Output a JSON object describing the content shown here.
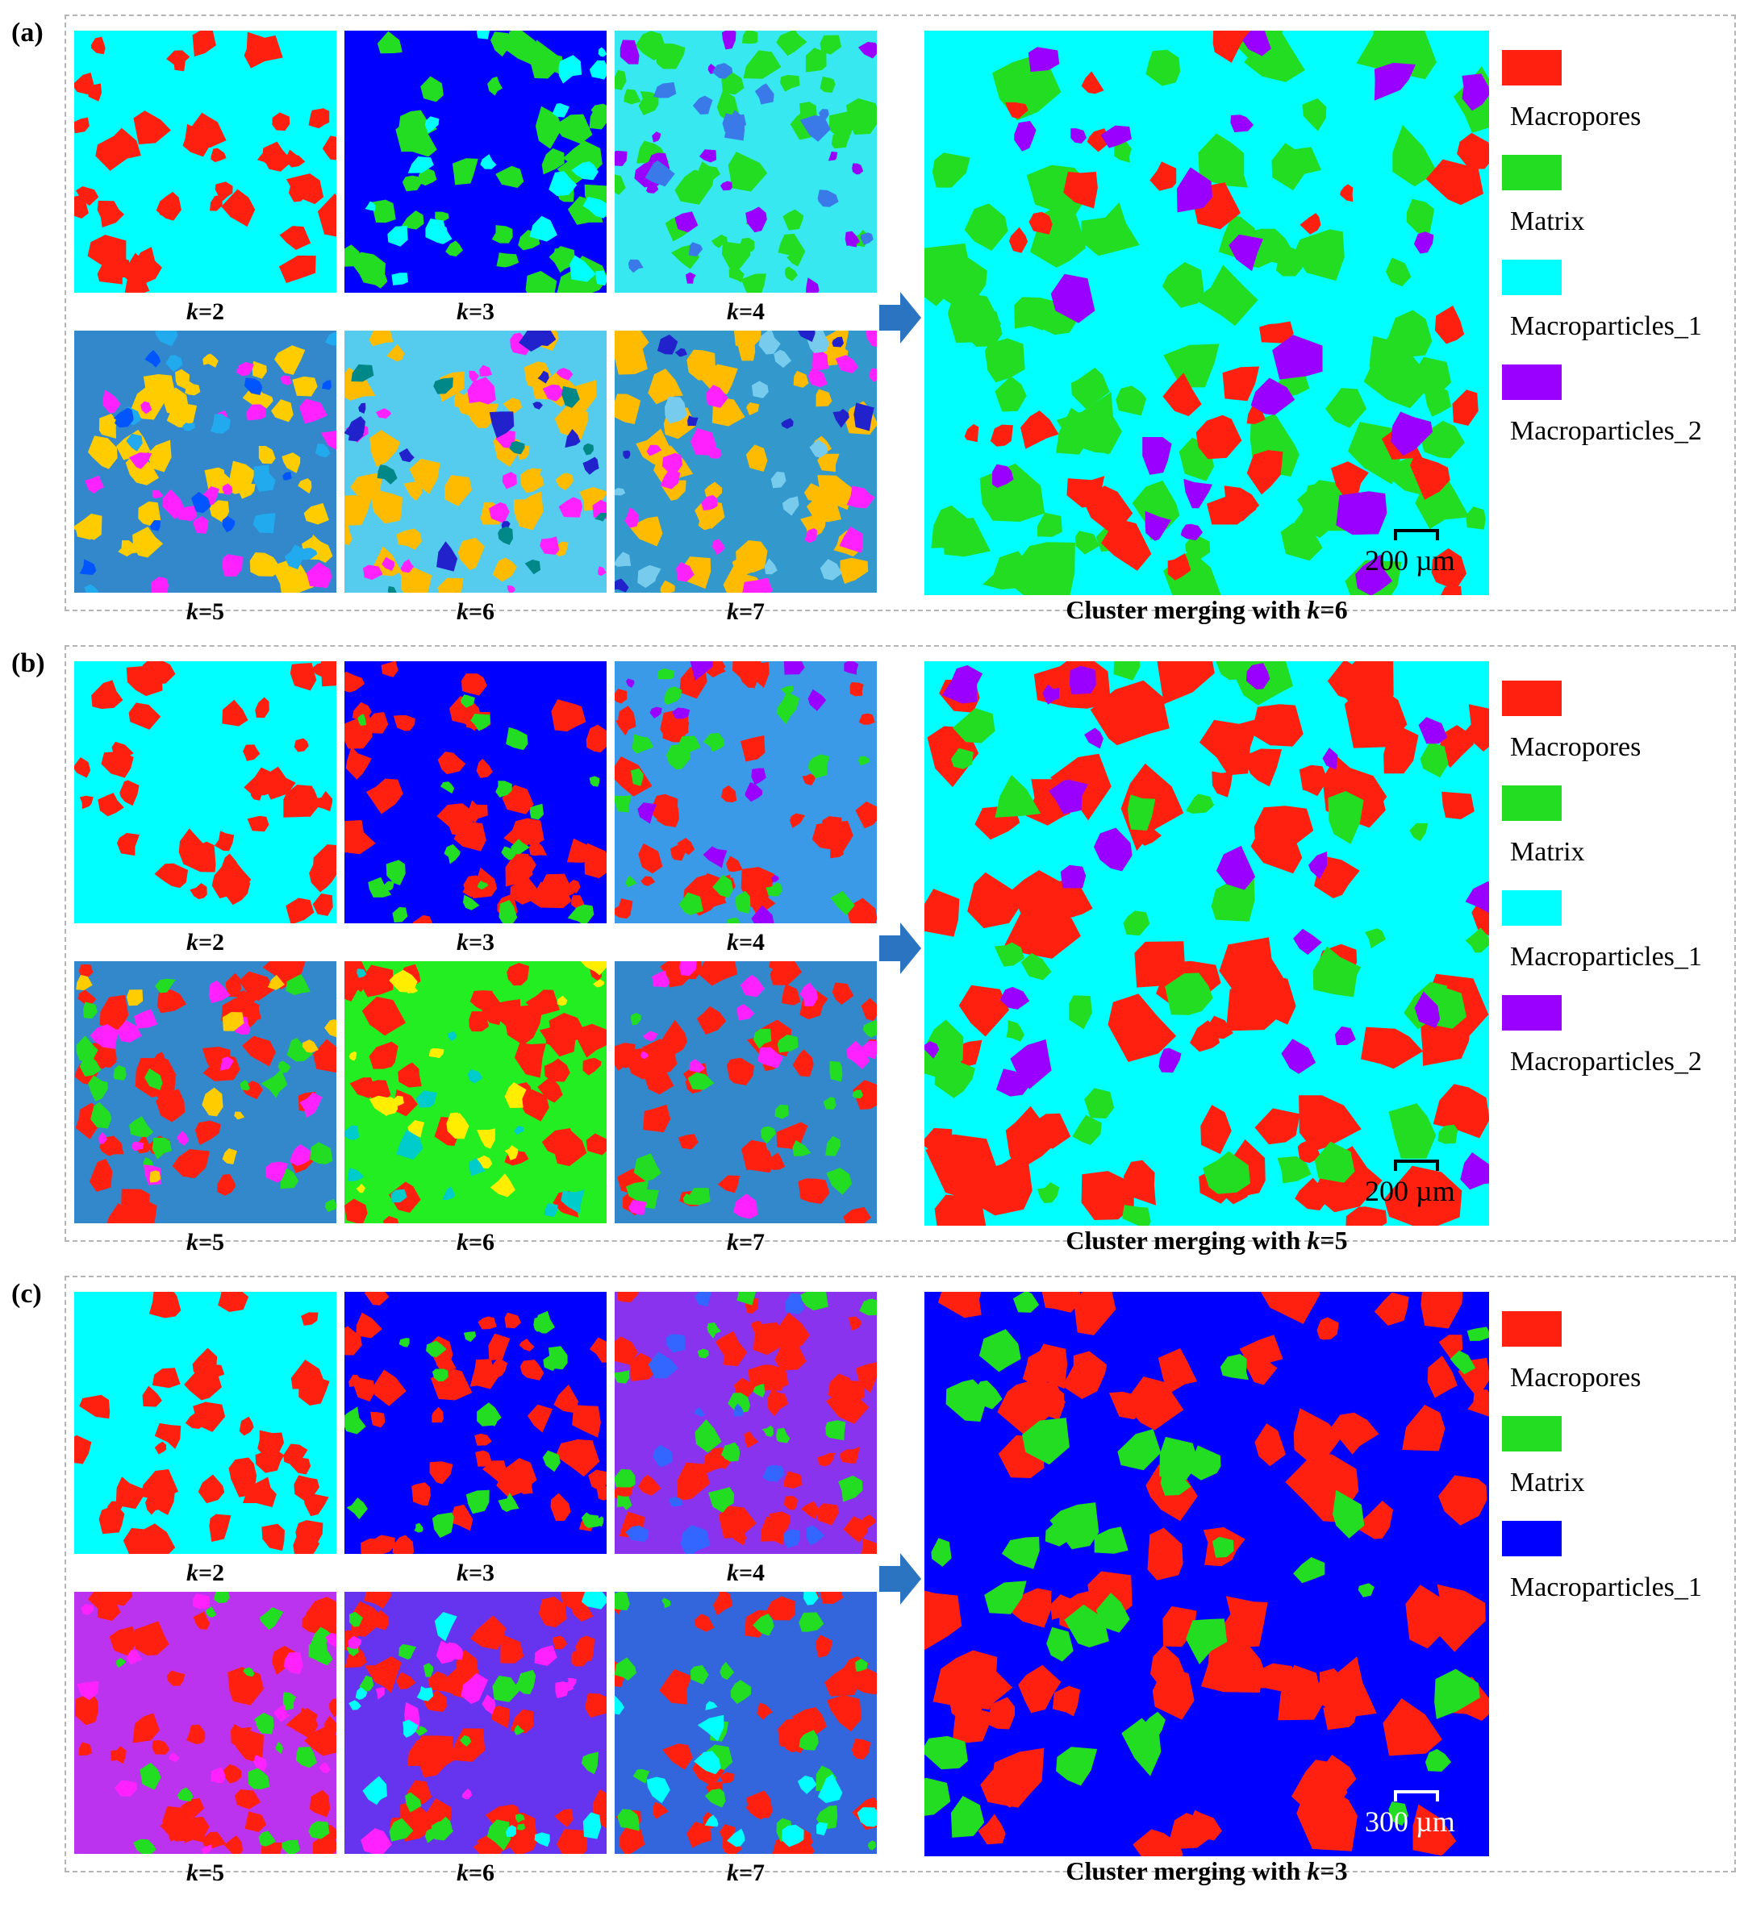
{
  "panels": [
    {
      "label": "(a)",
      "tiles": [
        {
          "k": "2",
          "bg": "#00ffff",
          "c": [
            "#ff2010"
          ]
        },
        {
          "k": "3",
          "bg": "#0000ff",
          "c": [
            "#22dd22",
            "#00ffff"
          ]
        },
        {
          "k": "4",
          "bg": "#38e8f0",
          "c": [
            "#22dd22",
            "#9a00ff",
            "#3a7ae8"
          ]
        },
        {
          "k": "5",
          "bg": "#3388cc",
          "c": [
            "#ffcc00",
            "#ff22ff",
            "#22aaee",
            "#0055ff"
          ]
        },
        {
          "k": "6",
          "bg": "#55ccee",
          "c": [
            "#ffbb00",
            "#ff22ff",
            "#2222cc",
            "#008888"
          ]
        },
        {
          "k": "7",
          "bg": "#3399cc",
          "c": [
            "#ffbb00",
            "#ff22ff",
            "#77ccee",
            "#2222cc"
          ]
        }
      ],
      "big": {
        "bg": "#00ffff",
        "c": [
          "#22dd22",
          "#ff2010",
          "#9a00ff"
        ]
      },
      "caption_prefix": "Cluster merging with ",
      "caption_k": "6",
      "scale": "200 µm",
      "scale_color": "dark",
      "legend": [
        {
          "label": "Macropores",
          "color": "#ff2010"
        },
        {
          "label": "Matrix",
          "color": "#22dd22"
        },
        {
          "label": "Macroparticles_1",
          "color": "#00ffff"
        },
        {
          "label": "Macroparticles_2",
          "color": "#9a00ff"
        }
      ]
    },
    {
      "label": "(b)",
      "tiles": [
        {
          "k": "2",
          "bg": "#00ffff",
          "c": [
            "#ff2010"
          ]
        },
        {
          "k": "3",
          "bg": "#0000ff",
          "c": [
            "#ff2010",
            "#22dd22"
          ]
        },
        {
          "k": "4",
          "bg": "#3a9ae8",
          "c": [
            "#ff2010",
            "#22dd22",
            "#9a00ff"
          ]
        },
        {
          "k": "5",
          "bg": "#3388cc",
          "c": [
            "#ff2010",
            "#22dd22",
            "#ff22ff",
            "#ffcc00"
          ]
        },
        {
          "k": "6",
          "bg": "#22ee22",
          "c": [
            "#ff2010",
            "#ffee00",
            "#00cccc"
          ]
        },
        {
          "k": "7",
          "bg": "#3388cc",
          "c": [
            "#ff2010",
            "#22dd22",
            "#ff22ff"
          ]
        }
      ],
      "big": {
        "bg": "#00ffff",
        "c": [
          "#ff2010",
          "#22dd22",
          "#9a00ff"
        ]
      },
      "caption_prefix": "Cluster merging with ",
      "caption_k": "5",
      "scale": "200 µm",
      "scale_color": "dark",
      "legend": [
        {
          "label": "Macropores",
          "color": "#ff2010"
        },
        {
          "label": "Matrix",
          "color": "#22dd22"
        },
        {
          "label": "Macroparticles_1",
          "color": "#00ffff"
        },
        {
          "label": "Macroparticles_2",
          "color": "#9a00ff"
        }
      ]
    },
    {
      "label": "(c)",
      "tiles": [
        {
          "k": "2",
          "bg": "#00ffff",
          "c": [
            "#ff2010"
          ]
        },
        {
          "k": "3",
          "bg": "#0000ff",
          "c": [
            "#ff2010",
            "#22dd22"
          ]
        },
        {
          "k": "4",
          "bg": "#8a33ee",
          "c": [
            "#ff2010",
            "#22dd22",
            "#3366ff"
          ]
        },
        {
          "k": "5",
          "bg": "#bb33ee",
          "c": [
            "#ff2010",
            "#22dd22",
            "#ff22ff"
          ]
        },
        {
          "k": "6",
          "bg": "#6633ee",
          "c": [
            "#ff2010",
            "#22dd22",
            "#ff22ff",
            "#00ffff"
          ]
        },
        {
          "k": "7",
          "bg": "#3366dd",
          "c": [
            "#ff2010",
            "#22dd22",
            "#00ffff"
          ]
        }
      ],
      "big": {
        "bg": "#0000ff",
        "c": [
          "#ff2010",
          "#22dd22"
        ]
      },
      "caption_prefix": "Cluster merging with ",
      "caption_k": "3",
      "scale": "300 µm",
      "scale_color": "light",
      "legend": [
        {
          "label": "Macropores",
          "color": "#ff2010"
        },
        {
          "label": "Matrix",
          "color": "#22dd22"
        },
        {
          "label": "Macroparticles_1",
          "color": "#0000ff"
        }
      ]
    }
  ],
  "k_prefix": "k",
  "k_eq": "=",
  "arrow_color": "#2a74c2",
  "arrow_icon": "right-arrow-icon"
}
